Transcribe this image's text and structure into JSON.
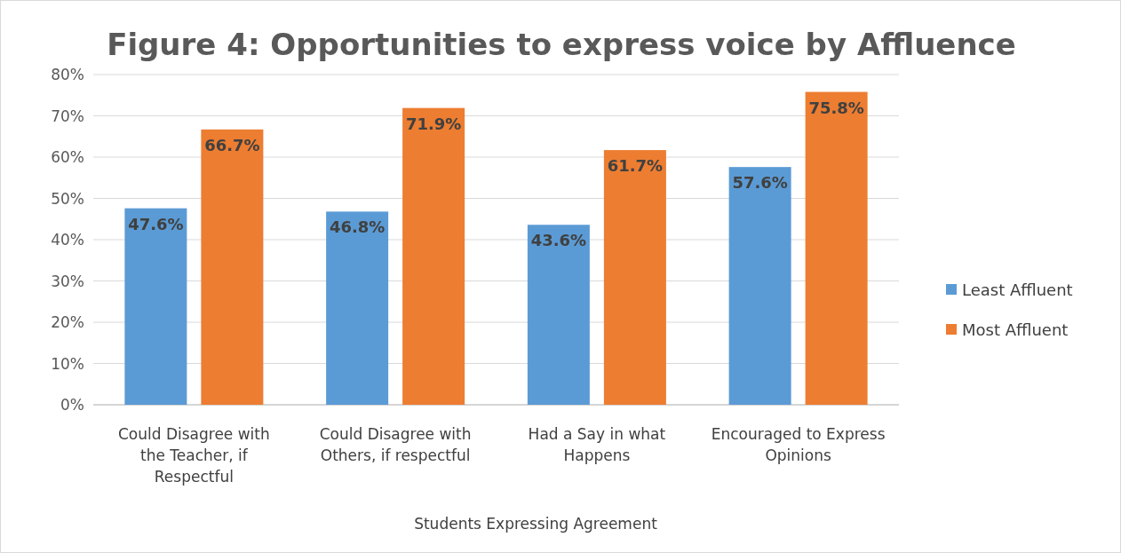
{
  "chart_data": {
    "type": "bar",
    "title": "Figure 4: Opportunities to express voice by Affluence",
    "xlabel": "Students Expressing Agreement",
    "categories": [
      "Could Disagree with the Teacher, if Respectful",
      "Could Disagree with Others, if respectful",
      "Had a Say in what Happens",
      "Encouraged to Express Opinions"
    ],
    "series": [
      {
        "name": "Least Affluent",
        "color": "#5b9bd5",
        "values": [
          47.6,
          46.8,
          43.6,
          57.6
        ],
        "value_labels": [
          "47.6%",
          "46.8%",
          "43.6%",
          "57.6%"
        ]
      },
      {
        "name": "Most Affluent",
        "color": "#ed7d31",
        "values": [
          66.7,
          71.9,
          61.7,
          75.8
        ],
        "value_labels": [
          "66.7%",
          "71.9%",
          "61.7%",
          "75.8%"
        ]
      }
    ],
    "ylim": [
      0,
      80
    ],
    "yticks": [
      {
        "value": 0,
        "label": "0%"
      },
      {
        "value": 10,
        "label": "10%"
      },
      {
        "value": 20,
        "label": "20%"
      },
      {
        "value": 30,
        "label": "30%"
      },
      {
        "value": 40,
        "label": "40%"
      },
      {
        "value": 50,
        "label": "50%"
      },
      {
        "value": 60,
        "label": "60%"
      },
      {
        "value": 70,
        "label": "70%"
      },
      {
        "value": 80,
        "label": "80%"
      }
    ],
    "grid": "y",
    "legend": "right"
  }
}
